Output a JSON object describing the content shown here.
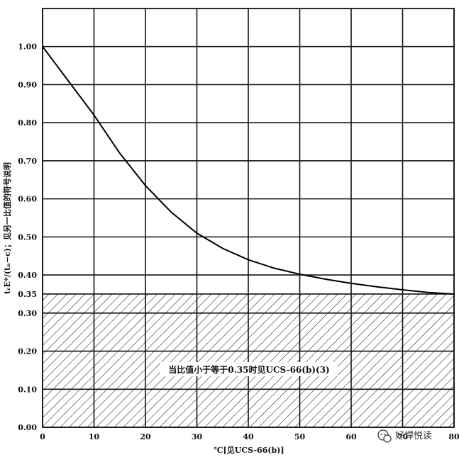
{
  "chart_data": {
    "type": "line",
    "xlabel": "℃[见UCS-66(b)]",
    "ylabel": "tᵣE*/(tₙ−c)；见另一比值的符号说明",
    "xlim": [
      0,
      80
    ],
    "ylim": [
      0,
      1.1
    ],
    "x_ticks": [
      "0",
      "10",
      "20",
      "30",
      "40",
      "50",
      "60",
      "70",
      "80"
    ],
    "y_ticks": [
      "0.00",
      "0.10",
      "0.20",
      "0.30",
      "0.35",
      "0.40",
      "0.50",
      "0.60",
      "0.70",
      "0.80",
      "0.90",
      "1.00"
    ],
    "y_tick_values": [
      0,
      0.1,
      0.2,
      0.3,
      0.35,
      0.4,
      0.5,
      0.6,
      0.7,
      0.8,
      0.9,
      1.0
    ],
    "grid": true,
    "hatched_region": {
      "y_from": 0,
      "y_to": 0.35,
      "label": "当比值小于等于0.35时见UCS-66(b)(3)"
    },
    "series": [
      {
        "x": [
          0,
          5,
          10,
          15,
          20,
          25,
          30,
          35,
          40,
          45,
          50,
          55,
          60,
          65,
          70,
          75,
          80
        ],
        "values": [
          1.0,
          0.91,
          0.82,
          0.72,
          0.635,
          0.565,
          0.51,
          0.47,
          0.44,
          0.418,
          0.402,
          0.389,
          0.378,
          0.369,
          0.361,
          0.354,
          0.35
        ]
      }
    ]
  },
  "watermark": {
    "text": "好焊悦读",
    "icon": "wechat-icon"
  }
}
